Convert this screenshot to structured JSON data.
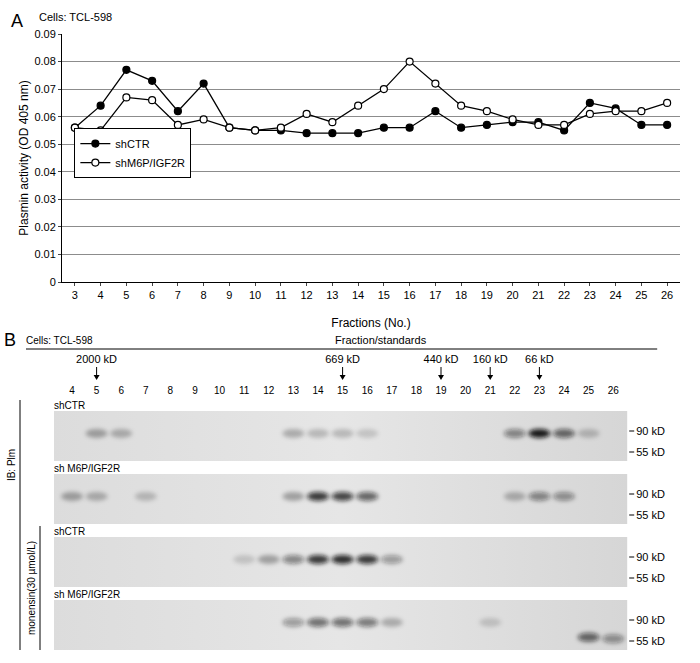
{
  "chart_data": {
    "type": "line",
    "panel": "A",
    "subtitle": "Cells: TCL-598",
    "x_label": "Fractions (No.)",
    "y_label": "Plasmin activity (OD 405 nm)",
    "categories": [
      "3",
      "4",
      "5",
      "6",
      "7",
      "8",
      "9",
      "10",
      "11",
      "12",
      "13",
      "14",
      "15",
      "16",
      "17",
      "18",
      "19",
      "20",
      "21",
      "22",
      "23",
      "24",
      "25",
      "26"
    ],
    "series": [
      {
        "name": "shCTR",
        "color": "#000000",
        "marker": "filled",
        "values": [
          0.056,
          0.064,
          0.077,
          0.073,
          0.062,
          0.072,
          0.056,
          0.055,
          0.055,
          0.054,
          0.054,
          0.054,
          0.056,
          0.056,
          0.062,
          0.056,
          0.057,
          0.058,
          0.058,
          0.055,
          0.065,
          0.063,
          0.057,
          0.057
        ]
      },
      {
        "name": "shM6P/IGF2R",
        "color": "#000000",
        "marker": "open",
        "values": [
          0.056,
          0.055,
          0.067,
          0.066,
          0.057,
          0.059,
          0.056,
          0.055,
          0.056,
          0.061,
          0.058,
          0.064,
          0.07,
          0.08,
          0.072,
          0.064,
          0.062,
          0.059,
          0.057,
          0.057,
          0.061,
          0.062,
          0.062,
          0.065
        ]
      }
    ],
    "ylim": [
      0,
      0.09
    ],
    "yticks": [
      0,
      0.01,
      0.02,
      0.03,
      0.04,
      0.05,
      0.06,
      0.07,
      0.08,
      0.09
    ],
    "grid": true,
    "legend": "middle left"
  },
  "panel_b": {
    "panel": "B",
    "subtitle": "Cells: TCL-598",
    "header": "Fraction/standards",
    "lanes": [
      4,
      5,
      6,
      7,
      8,
      9,
      10,
      11,
      12,
      13,
      14,
      15,
      16,
      17,
      18,
      19,
      20,
      21,
      22,
      23,
      24,
      25,
      26
    ],
    "standards": [
      {
        "lane": 5,
        "label": "2000 kD"
      },
      {
        "lane": 15,
        "label": "669 kD"
      },
      {
        "lane": 19,
        "label": "440 kD"
      },
      {
        "lane": 21,
        "label": "160 kD"
      },
      {
        "lane": 23,
        "label": "66 kD"
      }
    ],
    "antibody": "IB: Plm",
    "untreated": [
      {
        "name": "shCTR",
        "markers": [
          {
            "value": 90,
            "label": "90 kD"
          },
          {
            "value": 55,
            "label": "55 kD"
          }
        ],
        "bands": [
          {
            "lane": 5,
            "kd": 85,
            "intensity": 0.3
          },
          {
            "lane": 6,
            "kd": 85,
            "intensity": 0.25
          },
          {
            "lane": 13,
            "kd": 85,
            "intensity": 0.25
          },
          {
            "lane": 14,
            "kd": 85,
            "intensity": 0.2
          },
          {
            "lane": 15,
            "kd": 85,
            "intensity": 0.2
          },
          {
            "lane": 16,
            "kd": 85,
            "intensity": 0.15
          },
          {
            "lane": 22,
            "kd": 85,
            "intensity": 0.45
          },
          {
            "lane": 23,
            "kd": 85,
            "intensity": 0.95
          },
          {
            "lane": 24,
            "kd": 85,
            "intensity": 0.6
          },
          {
            "lane": 25,
            "kd": 85,
            "intensity": 0.2
          }
        ]
      },
      {
        "name": "sh M6P/IGF2R",
        "markers": [
          {
            "value": 90,
            "label": "90 kD"
          },
          {
            "value": 55,
            "label": "55 kD"
          }
        ],
        "bands": [
          {
            "lane": 4,
            "kd": 85,
            "intensity": 0.3
          },
          {
            "lane": 5,
            "kd": 85,
            "intensity": 0.25
          },
          {
            "lane": 7,
            "kd": 85,
            "intensity": 0.2
          },
          {
            "lane": 13,
            "kd": 85,
            "intensity": 0.3
          },
          {
            "lane": 14,
            "kd": 85,
            "intensity": 0.8
          },
          {
            "lane": 15,
            "kd": 85,
            "intensity": 0.75
          },
          {
            "lane": 16,
            "kd": 85,
            "intensity": 0.6
          },
          {
            "lane": 22,
            "kd": 85,
            "intensity": 0.25
          },
          {
            "lane": 23,
            "kd": 85,
            "intensity": 0.45
          },
          {
            "lane": 24,
            "kd": 85,
            "intensity": 0.4
          }
        ]
      }
    ],
    "monensin": {
      "label": "monensin(30 µmol/L)",
      "blots": [
        {
          "name": "shCTR",
          "markers": [
            {
              "value": 90,
              "label": "90 kD"
            },
            {
              "value": 55,
              "label": "55 kD"
            }
          ],
          "bands": [
            {
              "lane": 11,
              "kd": 85,
              "intensity": 0.15
            },
            {
              "lane": 12,
              "kd": 85,
              "intensity": 0.3
            },
            {
              "lane": 13,
              "kd": 85,
              "intensity": 0.45
            },
            {
              "lane": 14,
              "kd": 85,
              "intensity": 0.8
            },
            {
              "lane": 15,
              "kd": 85,
              "intensity": 0.85
            },
            {
              "lane": 16,
              "kd": 85,
              "intensity": 0.8
            },
            {
              "lane": 17,
              "kd": 85,
              "intensity": 0.35
            }
          ]
        },
        {
          "name": "sh M6P/IGF2R",
          "markers": [
            {
              "value": 90,
              "label": "90 kD"
            },
            {
              "value": 55,
              "label": "55 kD"
            }
          ],
          "bands": [
            {
              "lane": 13,
              "kd": 85,
              "intensity": 0.35
            },
            {
              "lane": 14,
              "kd": 85,
              "intensity": 0.55
            },
            {
              "lane": 15,
              "kd": 85,
              "intensity": 0.55
            },
            {
              "lane": 16,
              "kd": 85,
              "intensity": 0.5
            },
            {
              "lane": 17,
              "kd": 85,
              "intensity": 0.25
            },
            {
              "lane": 21,
              "kd": 85,
              "intensity": 0.15
            },
            {
              "lane": 25,
              "kd": 60,
              "intensity": 0.6
            },
            {
              "lane": 26,
              "kd": 58,
              "intensity": 0.4
            }
          ]
        }
      ]
    }
  }
}
